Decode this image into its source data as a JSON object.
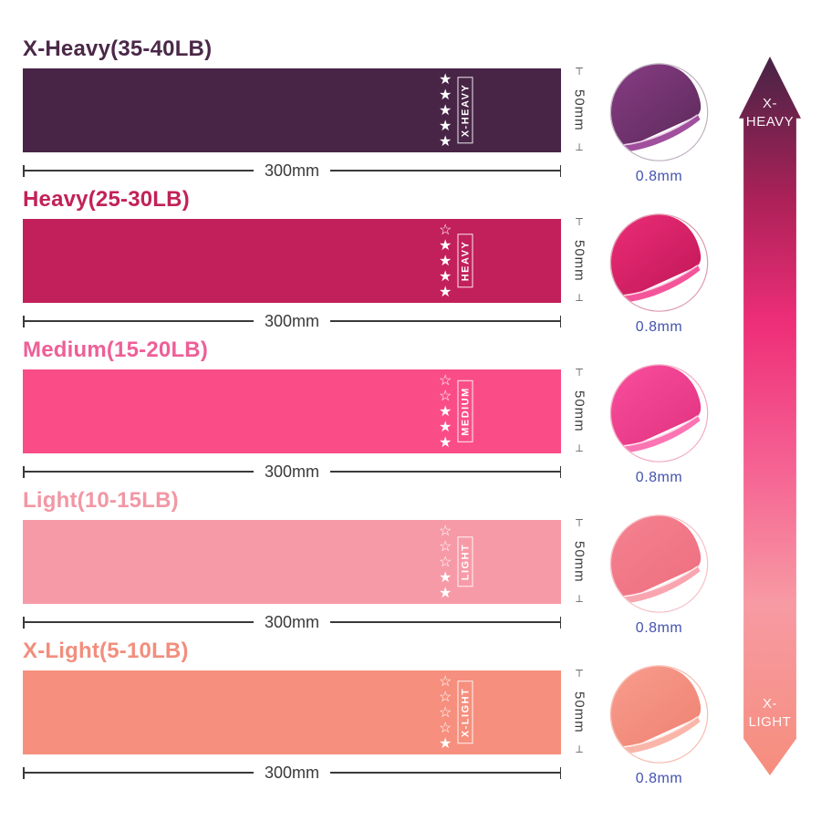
{
  "rows": [
    {
      "name": "x-heavy",
      "title": "X-Heavy(35-40LB)",
      "level_label": "X-HEAVY",
      "stars_filled": 5,
      "stars_total": 5,
      "width_label": "300mm",
      "height_label": "50mm",
      "thickness_label": "0.8mm",
      "band_color": "#482546",
      "title_color": "#4a2848",
      "fold": {
        "light": "#8a3d87",
        "dark": "#5c2a5a",
        "sliver": "#a04f9d",
        "edge": "#ecd2ea",
        "border": "#bfb0be"
      }
    },
    {
      "name": "heavy",
      "title": "Heavy(25-30LB)",
      "level_label": "HEAVY",
      "stars_filled": 4,
      "stars_total": 5,
      "width_label": "300mm",
      "height_label": "50mm",
      "thickness_label": "0.8mm",
      "band_color": "#c2205a",
      "title_color": "#c22258",
      "fold": {
        "light": "#ee2e78",
        "dark": "#c01758",
        "sliver": "#f4559a",
        "edge": "#fbd4e4",
        "border": "#dc9aad"
      }
    },
    {
      "name": "medium",
      "title": "Medium(15-20LB)",
      "level_label": "MEDIUM",
      "stars_filled": 3,
      "stars_total": 5,
      "width_label": "300mm",
      "height_label": "50mm",
      "thickness_label": "0.8mm",
      "band_color": "#fa4d88",
      "title_color": "#ee5f97",
      "fold": {
        "light": "#fb51a0",
        "dark": "#e0317e",
        "sliver": "#fc74b2",
        "edge": "#fee0ee",
        "border": "#f2a9c1"
      }
    },
    {
      "name": "light",
      "title": "Light(10-15LB)",
      "level_label": "LIGHT",
      "stars_filled": 2,
      "stars_total": 5,
      "width_label": "300mm",
      "height_label": "50mm",
      "thickness_label": "0.8mm",
      "band_color": "#f79aa7",
      "title_color": "#f297a4",
      "fold": {
        "light": "#f58391",
        "dark": "#ed6e7f",
        "sliver": "#f9a5b0",
        "edge": "#fdeaec",
        "border": "#f5bfc6"
      }
    },
    {
      "name": "x-light",
      "title": "X-Light(5-10LB)",
      "level_label": "X-LIGHT",
      "stars_filled": 1,
      "stars_total": 5,
      "width_label": "300mm",
      "height_label": "50mm",
      "thickness_label": "0.8mm",
      "band_color": "#f68f7e",
      "title_color": "#f28e7d",
      "fold": {
        "light": "#f89e8f",
        "dark": "#ef8272",
        "sliver": "#fab5a9",
        "edge": "#fdece7",
        "border": "#f6baae"
      }
    }
  ],
  "star_glyphs": {
    "filled": "★",
    "outline": "☆"
  },
  "dimension_ticks": {
    "top": "⊤",
    "bottom": "⊥"
  },
  "arrow": {
    "top_label_line1": "X-",
    "top_label_line2": "HEAVY",
    "bottom_label_line1": "X-",
    "bottom_label_line2": "LIGHT",
    "gradient": [
      "#462445",
      "#ac2158",
      "#ee2e78",
      "#f55f92",
      "#f79aa3",
      "#f68e7d"
    ]
  },
  "colors": {
    "dimension": "#3a3a3a",
    "thickness_text": "#4453ad",
    "star": "#ffffff"
  }
}
